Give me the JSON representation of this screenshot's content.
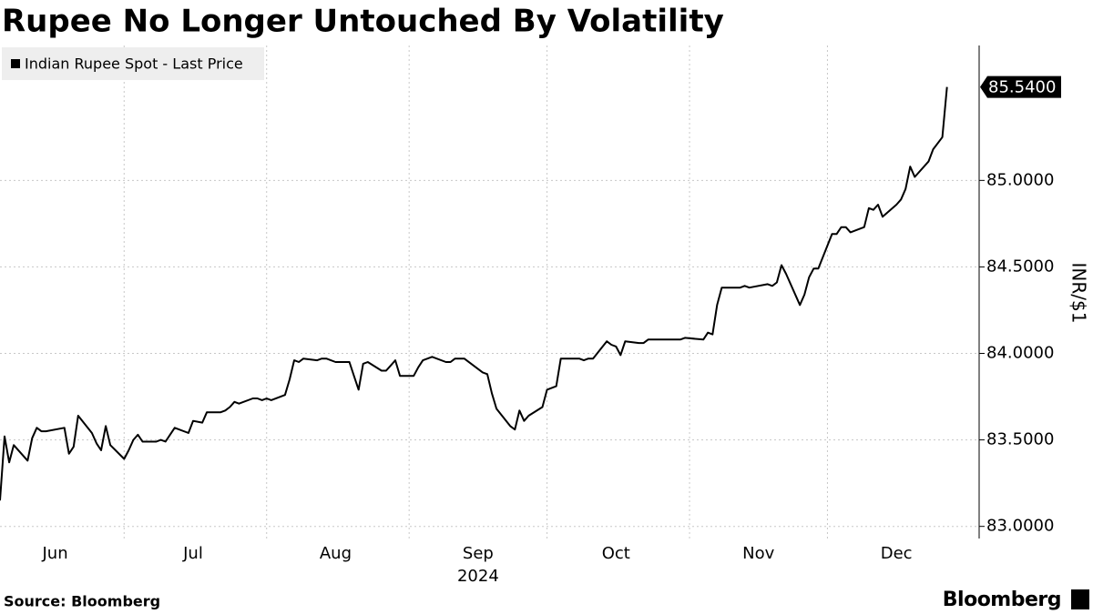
{
  "chart_data": {
    "type": "line",
    "title": "Rupee No Longer Untouched By Volatility",
    "y_axis_label": "INR/$1",
    "source": "Source: Bloomberg",
    "brand": "Bloomberg",
    "x_year_label": "2024",
    "xlim": [
      "2024-06-04",
      "2025-01-03"
    ],
    "xgrid": [
      "2024-07-01",
      "2024-08-01",
      "2024-09-01",
      "2024-10-01",
      "2024-11-01",
      "2024-12-01"
    ],
    "xticks": [
      {
        "value": "2024-06-16",
        "label": "Jun"
      },
      {
        "value": "2024-07-16",
        "label": "Jul"
      },
      {
        "value": "2024-08-16",
        "label": "Aug"
      },
      {
        "value": "2024-09-16",
        "label": "Sep"
      },
      {
        "value": "2024-10-16",
        "label": "Oct"
      },
      {
        "value": "2024-11-16",
        "label": "Nov"
      },
      {
        "value": "2024-12-16",
        "label": "Dec"
      }
    ],
    "ylim": [
      82.93,
      85.78
    ],
    "yticks": [
      {
        "value": 83,
        "label": "83.0000"
      },
      {
        "value": 83.5,
        "label": "83.5000"
      },
      {
        "value": 84,
        "label": "84.0000"
      },
      {
        "value": 84.5,
        "label": "84.5000"
      },
      {
        "value": 85,
        "label": "85.0000"
      }
    ],
    "grid": true,
    "legend": "top-left",
    "last_price": {
      "value": 85.54,
      "label": "85.5400"
    },
    "x": [
      "2024-06-04",
      "2024-06-05",
      "2024-06-06",
      "2024-06-07",
      "2024-06-10",
      "2024-06-11",
      "2024-06-12",
      "2024-06-13",
      "2024-06-14",
      "2024-06-18",
      "2024-06-19",
      "2024-06-20",
      "2024-06-21",
      "2024-06-24",
      "2024-06-25",
      "2024-06-26",
      "2024-06-27",
      "2024-06-28",
      "2024-07-01",
      "2024-07-02",
      "2024-07-03",
      "2024-07-04",
      "2024-07-05",
      "2024-07-08",
      "2024-07-09",
      "2024-07-10",
      "2024-07-11",
      "2024-07-12",
      "2024-07-15",
      "2024-07-16",
      "2024-07-18",
      "2024-07-19",
      "2024-07-22",
      "2024-07-23",
      "2024-07-24",
      "2024-07-25",
      "2024-07-26",
      "2024-07-29",
      "2024-07-30",
      "2024-07-31",
      "2024-08-01",
      "2024-08-02",
      "2024-08-05",
      "2024-08-06",
      "2024-08-07",
      "2024-08-08",
      "2024-08-09",
      "2024-08-12",
      "2024-08-13",
      "2024-08-14",
      "2024-08-16",
      "2024-08-19",
      "2024-08-20",
      "2024-08-21",
      "2024-08-22",
      "2024-08-23",
      "2024-08-26",
      "2024-08-27",
      "2024-08-28",
      "2024-08-29",
      "2024-08-30",
      "2024-09-02",
      "2024-09-03",
      "2024-09-04",
      "2024-09-05",
      "2024-09-06",
      "2024-09-09",
      "2024-09-10",
      "2024-09-11",
      "2024-09-12",
      "2024-09-13",
      "2024-09-17",
      "2024-09-18",
      "2024-09-19",
      "2024-09-20",
      "2024-09-23",
      "2024-09-24",
      "2024-09-25",
      "2024-09-26",
      "2024-09-27",
      "2024-09-30",
      "2024-10-01",
      "2024-10-03",
      "2024-10-04",
      "2024-10-07",
      "2024-10-08",
      "2024-10-09",
      "2024-10-10",
      "2024-10-11",
      "2024-10-14",
      "2024-10-15",
      "2024-10-16",
      "2024-10-17",
      "2024-10-18",
      "2024-10-21",
      "2024-10-22",
      "2024-10-23",
      "2024-10-24",
      "2024-10-25",
      "2024-10-28",
      "2024-10-29",
      "2024-10-30",
      "2024-10-31",
      "2024-11-04",
      "2024-11-05",
      "2024-11-06",
      "2024-11-07",
      "2024-11-08",
      "2024-11-11",
      "2024-11-12",
      "2024-11-13",
      "2024-11-14",
      "2024-11-18",
      "2024-11-19",
      "2024-11-20",
      "2024-11-21",
      "2024-11-22",
      "2024-11-25",
      "2024-11-26",
      "2024-11-27",
      "2024-11-28",
      "2024-11-29",
      "2024-12-02",
      "2024-12-03",
      "2024-12-04",
      "2024-12-05",
      "2024-12-06",
      "2024-12-09",
      "2024-12-10",
      "2024-12-11",
      "2024-12-12",
      "2024-12-13",
      "2024-12-16",
      "2024-12-17",
      "2024-12-18",
      "2024-12-19",
      "2024-12-20",
      "2024-12-23",
      "2024-12-24",
      "2024-12-26",
      "2024-12-27"
    ],
    "series": [
      {
        "name": "Indian Rupee Spot - Last Price",
        "color": "#000000",
        "values": [
          83.15,
          83.52,
          83.37,
          83.47,
          83.38,
          83.51,
          83.57,
          83.55,
          83.55,
          83.57,
          83.42,
          83.46,
          83.64,
          83.54,
          83.48,
          83.44,
          83.58,
          83.47,
          83.39,
          83.44,
          83.5,
          83.53,
          83.49,
          83.49,
          83.5,
          83.49,
          83.53,
          83.57,
          83.54,
          83.61,
          83.6,
          83.66,
          83.66,
          83.67,
          83.69,
          83.72,
          83.71,
          83.74,
          83.74,
          83.73,
          83.74,
          83.73,
          83.76,
          83.85,
          83.96,
          83.95,
          83.97,
          83.96,
          83.97,
          83.97,
          83.95,
          83.95,
          83.87,
          83.79,
          83.94,
          83.95,
          83.9,
          83.9,
          83.93,
          83.96,
          83.87,
          83.87,
          83.92,
          83.96,
          83.97,
          83.98,
          83.95,
          83.95,
          83.97,
          83.97,
          83.97,
          83.89,
          83.88,
          83.77,
          83.68,
          83.58,
          83.56,
          83.67,
          83.61,
          83.64,
          83.69,
          83.79,
          83.81,
          83.97,
          83.97,
          83.97,
          83.96,
          83.97,
          83.97,
          84.07,
          84.05,
          84.04,
          83.99,
          84.07,
          84.06,
          84.06,
          84.08,
          84.08,
          84.08,
          84.08,
          84.08,
          84.08,
          84.09,
          84.08,
          84.12,
          84.11,
          84.28,
          84.38,
          84.38,
          84.38,
          84.39,
          84.38,
          84.4,
          84.39,
          84.41,
          84.51,
          84.46,
          84.28,
          84.34,
          84.44,
          84.49,
          84.49,
          84.69,
          84.69,
          84.73,
          84.73,
          84.7,
          84.73,
          84.84,
          84.83,
          84.86,
          84.79,
          84.86,
          84.89,
          84.95,
          85.08,
          85.02,
          85.11,
          85.18,
          85.25,
          85.54
        ]
      }
    ]
  }
}
